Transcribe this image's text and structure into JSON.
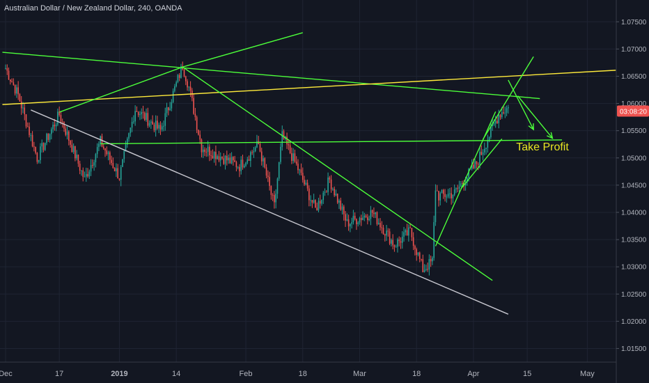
{
  "chart_data": {
    "type": "candlestick",
    "title": "Australian Dollar / New Zealand Dollar, 240, OANDA",
    "ylim": [
      1.0125,
      1.079
    ],
    "yticks": [
      "1.07500",
      "1.07000",
      "1.06500",
      "1.06000",
      "1.05500",
      "1.05000",
      "1.04500",
      "1.04000",
      "1.03500",
      "1.03000",
      "1.02500",
      "1.02000",
      "1.01500"
    ],
    "yticks_v": [
      1.075,
      1.07,
      1.065,
      1.06,
      1.055,
      1.05,
      1.045,
      1.04,
      1.035,
      1.03,
      1.025,
      1.02,
      1.015
    ],
    "xticks": [
      "Dec",
      "17",
      "2019",
      "14",
      "Feb",
      "18",
      "Mar",
      "18",
      "Apr",
      "15",
      "May"
    ],
    "xticks_i": [
      0,
      34,
      72,
      108,
      152,
      188,
      224,
      260,
      296,
      330,
      368
    ],
    "last_price": "03:08:20",
    "last_value": 1.0586,
    "annotation": "Take Profit",
    "colors": {
      "up": "#26a69a",
      "down": "#ef5350",
      "trend": "#4cff3a",
      "resistance": "#ffeb3b",
      "channel": "#c8c8d0",
      "label_bg": "#ef5350"
    },
    "anchors_idx": [
      0,
      8,
      20,
      34,
      50,
      60,
      72,
      82,
      98,
      112,
      116,
      124,
      148,
      160,
      170,
      175,
      185,
      196,
      205,
      216,
      232,
      246,
      256,
      264,
      270,
      272,
      274,
      284,
      298,
      312,
      318
    ],
    "anchors_val": [
      1.0665,
      1.0615,
      1.05,
      1.058,
      1.046,
      1.053,
      1.0465,
      1.059,
      1.055,
      1.067,
      1.063,
      1.052,
      1.0485,
      1.0525,
      1.041,
      1.054,
      1.048,
      1.0405,
      1.046,
      1.038,
      1.04,
      1.034,
      1.0365,
      1.0295,
      1.031,
      1.0445,
      1.043,
      1.0435,
      1.049,
      1.058,
      1.0593
    ],
    "lines": [
      {
        "name": "upper-trendline",
        "color": "#4cff3a",
        "i1": -2,
        "v1": 1.0694,
        "i2": 338,
        "v2": 1.0609
      },
      {
        "name": "resistance-line",
        "color": "#ffeb3b",
        "i1": -2,
        "v1": 1.0598,
        "i2": 386,
        "v2": 1.0661
      },
      {
        "name": "wedge-upper-line",
        "color": "#4cff3a",
        "i1": 34,
        "v1": 1.0584,
        "i2": 112,
        "v2": 1.0667
      },
      {
        "name": "wedge-apex-line",
        "color": "#4cff3a",
        "i1": 112,
        "v1": 1.0667,
        "i2": 188,
        "v2": 1.073
      },
      {
        "name": "falling-trendline",
        "color": "#4cff3a",
        "i1": 112,
        "v1": 1.0667,
        "i2": 308,
        "v2": 1.0275
      },
      {
        "name": "support-line",
        "color": "#4cff3a",
        "i1": 60,
        "v1": 1.0526,
        "i2": 352,
        "v2": 1.0533
      },
      {
        "name": "channel-lower-line",
        "color": "#c8c8d0",
        "i1": 16,
        "v1": 1.0588,
        "i2": 318,
        "v2": 1.0213
      },
      {
        "name": "channel-upper-line",
        "color": "#4cff3a",
        "i1": 272,
        "v1": 1.0338,
        "i2": 310,
        "v2": 1.0585
      },
      {
        "name": "channel-support-line",
        "color": "#4cff3a",
        "i1": 288,
        "v1": 1.0443,
        "i2": 314,
        "v2": 1.0535
      },
      {
        "name": "breakout-up-line",
        "color": "#4cff3a",
        "i1": 302,
        "v1": 1.0534,
        "i2": 334,
        "v2": 1.0686
      }
    ],
    "arrows": [
      {
        "name": "target-arrow-1",
        "i1": 318,
        "v1": 1.0643,
        "i2": 334,
        "v2": 1.0552
      },
      {
        "name": "target-arrow-2",
        "i1": 324,
        "v1": 1.0614,
        "i2": 346,
        "v2": 1.0536
      }
    ],
    "annotation_pos": {
      "i": 323,
      "v": 1.0514
    }
  }
}
